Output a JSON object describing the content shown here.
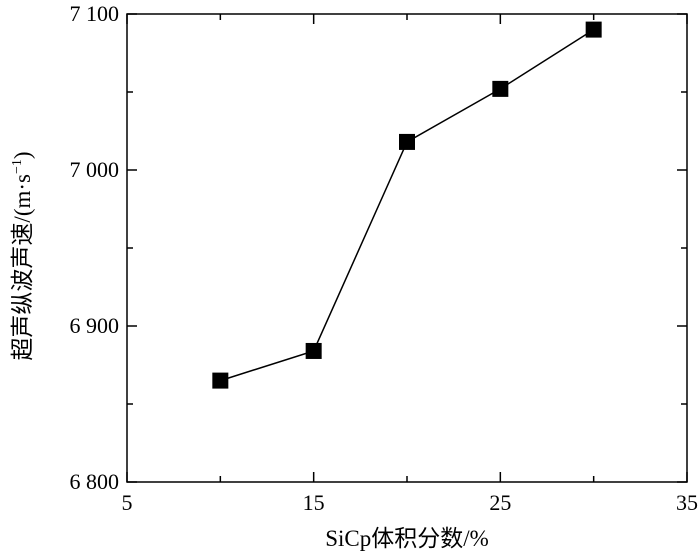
{
  "chart_data": {
    "type": "line",
    "title": "",
    "xlabel": "SiCp体积分数/%",
    "ylabel": "超声纵波声速/(m·s",
    "ylabel_unit_exponent": "−1",
    "ylabel_close": ")",
    "xlim": [
      5,
      35
    ],
    "ylim": [
      6800,
      7100
    ],
    "x_ticks": [
      5,
      15,
      25,
      35
    ],
    "x_tick_labels": [
      "5",
      "15",
      "25",
      "35"
    ],
    "y_ticks": [
      6800,
      6900,
      7000,
      7100
    ],
    "y_tick_labels": [
      "6 800",
      "6 900",
      "7 000",
      "7 100"
    ],
    "grid": false,
    "legend": "none",
    "marker": "square",
    "colors": {
      "line": "#000000",
      "marker": "#000000",
      "axis": "#000000"
    },
    "series": [
      {
        "x": [
          10,
          15,
          20,
          25,
          30
        ],
        "values": [
          6865,
          6884,
          7018,
          7052,
          7090
        ]
      }
    ]
  }
}
